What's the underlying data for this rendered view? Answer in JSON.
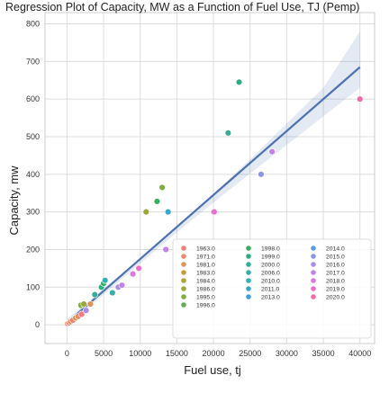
{
  "chart_data": {
    "type": "scatter",
    "title": "Regression Plot of Capacity, MW as a Function of Fuel Use, TJ (Pemp)",
    "xlabel": "Fuel use, tj",
    "ylabel": "Capacity, mw",
    "xlim": [
      -3000,
      42000
    ],
    "ylim": [
      -50,
      830
    ],
    "x_ticks": [
      0,
      5000,
      10000,
      15000,
      20000,
      25000,
      30000,
      35000,
      40000
    ],
    "y_ticks": [
      0,
      100,
      200,
      300,
      400,
      500,
      600,
      700,
      800
    ],
    "grid": true,
    "legend_placement": "bottom-right",
    "regression": {
      "color": "#4c72b0",
      "x_start": 0,
      "y_start": 5,
      "x_end": 40000,
      "y_end": 685,
      "ci_band": [
        [
          0,
          -5,
          15
        ],
        [
          5000,
          80,
          96
        ],
        [
          10000,
          163,
          177
        ],
        [
          15000,
          245,
          262
        ],
        [
          20000,
          325,
          348
        ],
        [
          25000,
          402,
          440
        ],
        [
          30000,
          478,
          535
        ],
        [
          35000,
          554,
          630
        ],
        [
          40000,
          630,
          780
        ]
      ]
    },
    "legend": [
      {
        "label": "1963.0",
        "color": "#f07c7c"
      },
      {
        "label": "1971.0",
        "color": "#ea8a6a"
      },
      {
        "label": "1981.0",
        "color": "#dd955a"
      },
      {
        "label": "1983.0",
        "color": "#c79b3c"
      },
      {
        "label": "1984.0",
        "color": "#b4a033"
      },
      {
        "label": "1986.0",
        "color": "#9da638"
      },
      {
        "label": "1995.0",
        "color": "#7fad3f"
      },
      {
        "label": "1996.0",
        "color": "#5fae4f"
      },
      {
        "label": "1998.0",
        "color": "#36ad63"
      },
      {
        "label": "1999.0",
        "color": "#2eae80"
      },
      {
        "label": "2000.0",
        "color": "#33ad96"
      },
      {
        "label": "2006.0",
        "color": "#34aea6"
      },
      {
        "label": "2010.0",
        "color": "#35acb8"
      },
      {
        "label": "2011.0",
        "color": "#38a8c9"
      },
      {
        "label": "2013.0",
        "color": "#3ea2d8"
      },
      {
        "label": "2014.0",
        "color": "#5b9be4"
      },
      {
        "label": "2015.0",
        "color": "#8b95e8"
      },
      {
        "label": "2016.0",
        "color": "#a98ce8"
      },
      {
        "label": "2017.0",
        "color": "#c282e8"
      },
      {
        "label": "2018.0",
        "color": "#da78e0"
      },
      {
        "label": "2019.0",
        "color": "#e96dcf"
      },
      {
        "label": "2020.0",
        "color": "#f06aa8"
      }
    ],
    "points": [
      {
        "x": 100,
        "y": 3,
        "color": "#f07c7c"
      },
      {
        "x": 300,
        "y": 5,
        "color": "#ea8a6a"
      },
      {
        "x": 500,
        "y": 8,
        "color": "#dd955a"
      },
      {
        "x": 800,
        "y": 12,
        "color": "#f07c7c"
      },
      {
        "x": 1200,
        "y": 18,
        "color": "#c79b3c"
      },
      {
        "x": 1500,
        "y": 22,
        "color": "#ea8a6a"
      },
      {
        "x": 2000,
        "y": 28,
        "color": "#f07c7c"
      },
      {
        "x": 2600,
        "y": 38,
        "color": "#a98ce8"
      },
      {
        "x": 3200,
        "y": 55,
        "color": "#dd955a"
      },
      {
        "x": 1900,
        "y": 52,
        "color": "#7fad3f"
      },
      {
        "x": 2300,
        "y": 55,
        "color": "#9da638"
      },
      {
        "x": 3800,
        "y": 80,
        "color": "#33ad96"
      },
      {
        "x": 4700,
        "y": 100,
        "color": "#2eae80"
      },
      {
        "x": 5000,
        "y": 110,
        "color": "#36ad63"
      },
      {
        "x": 5200,
        "y": 118,
        "color": "#35acb8"
      },
      {
        "x": 6200,
        "y": 85,
        "color": "#34aea6"
      },
      {
        "x": 7000,
        "y": 100,
        "color": "#a98ce8"
      },
      {
        "x": 7500,
        "y": 105,
        "color": "#c282e8"
      },
      {
        "x": 9000,
        "y": 135,
        "color": "#da78e0"
      },
      {
        "x": 9800,
        "y": 150,
        "color": "#e96dcf"
      },
      {
        "x": 10800,
        "y": 300,
        "color": "#9da638"
      },
      {
        "x": 12300,
        "y": 328,
        "color": "#36ad63"
      },
      {
        "x": 13000,
        "y": 365,
        "color": "#7fad3f"
      },
      {
        "x": 13800,
        "y": 300,
        "color": "#38a8c9"
      },
      {
        "x": 13500,
        "y": 200,
        "color": "#c282e8"
      },
      {
        "x": 20000,
        "y": 300,
        "color": "#f07c7c"
      },
      {
        "x": 20100,
        "y": 300,
        "color": "#e96dcf"
      },
      {
        "x": 22000,
        "y": 510,
        "color": "#33ad96"
      },
      {
        "x": 23500,
        "y": 645,
        "color": "#2eae80"
      },
      {
        "x": 26500,
        "y": 400,
        "color": "#8b95e8"
      },
      {
        "x": 28000,
        "y": 460,
        "color": "#c282e8"
      },
      {
        "x": 40000,
        "y": 600,
        "color": "#f06aa8"
      }
    ]
  }
}
